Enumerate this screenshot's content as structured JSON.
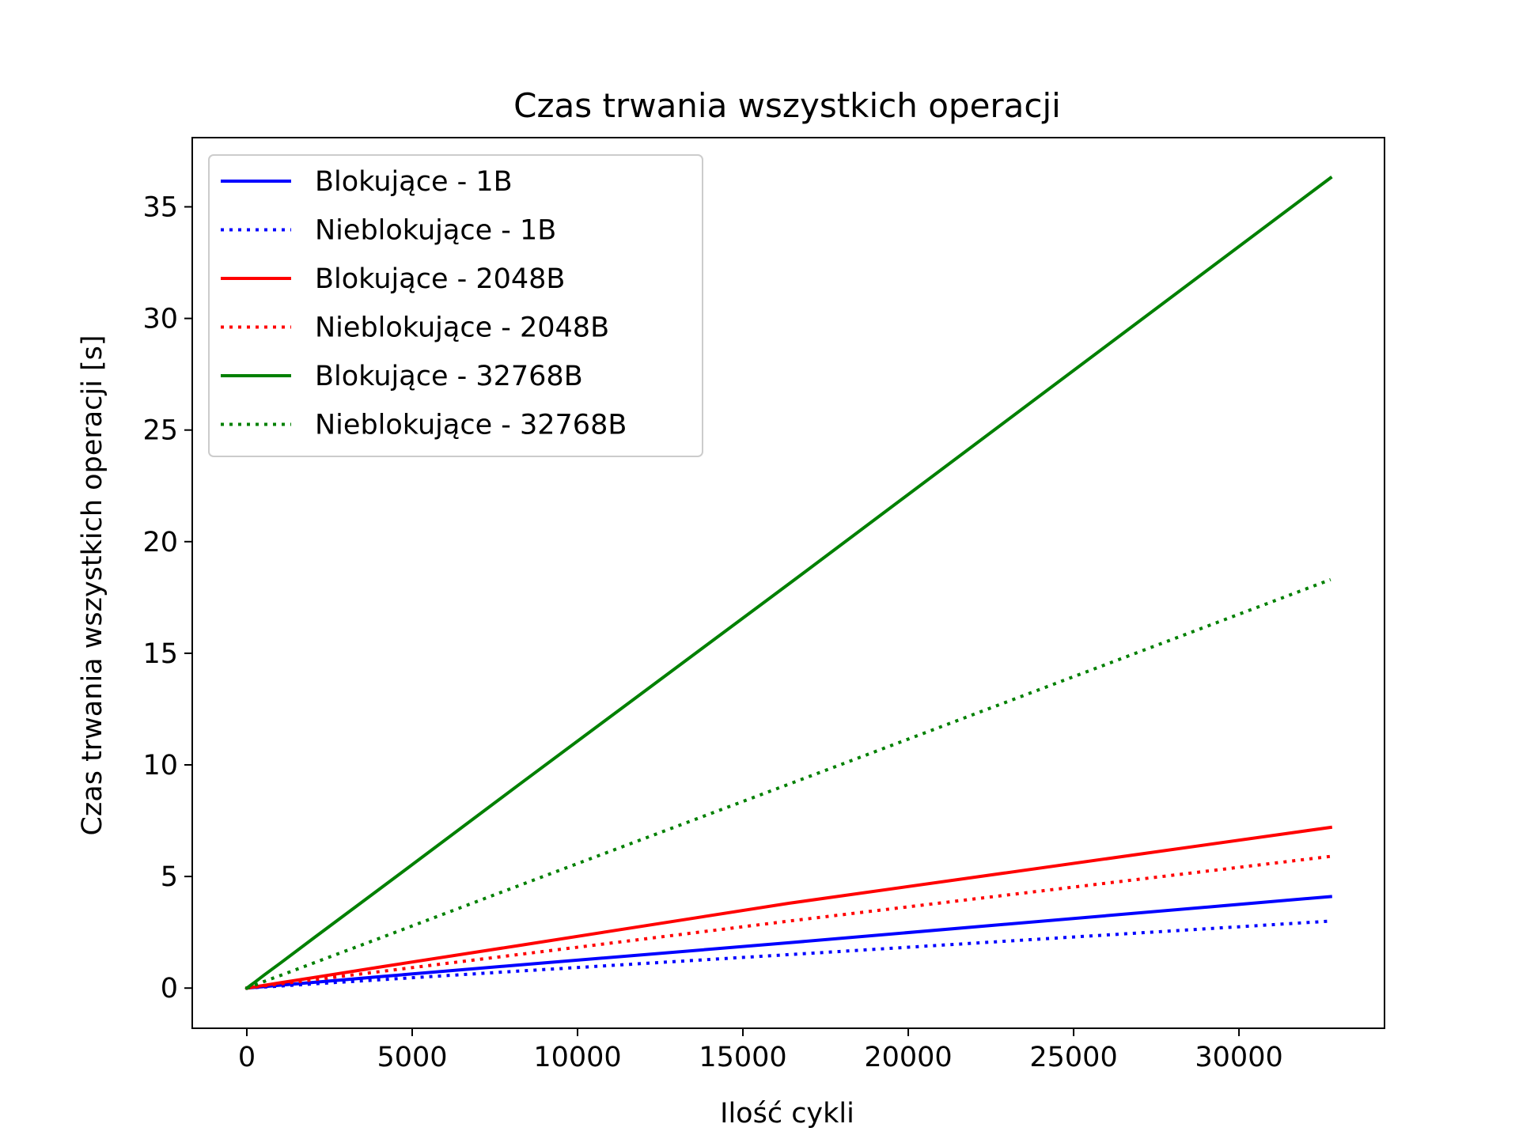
{
  "chart_data": {
    "type": "line",
    "title": "Czas trwania wszystkich operacji",
    "xlabel": "Ilość cykli",
    "ylabel": "Czas trwania wszystkich operacji [s]",
    "xlim": [
      -1650,
      34400
    ],
    "ylim": [
      -1.8,
      38.1
    ],
    "xticks": [
      0,
      5000,
      10000,
      15000,
      20000,
      25000,
      30000
    ],
    "yticks": [
      0,
      5,
      10,
      15,
      20,
      25,
      30,
      35
    ],
    "legend_position": "upper-left",
    "grid": false,
    "x": [
      1,
      2,
      4,
      8,
      16,
      32,
      64,
      128,
      256,
      512,
      1024,
      2048,
      4096,
      8192,
      16384,
      32768
    ],
    "series": [
      {
        "name": "Blokujące - 1B",
        "color": "#0000ff",
        "style": "solid",
        "values": [
          0.0001,
          0.0003,
          0.0005,
          0.001,
          0.002,
          0.004,
          0.008,
          0.016,
          0.032,
          0.064,
          0.13,
          0.26,
          0.52,
          1.03,
          2.03,
          4.1
        ]
      },
      {
        "name": "Nieblokujące - 1B",
        "color": "#0000ff",
        "style": "dotted",
        "values": [
          0.0001,
          0.0002,
          0.0004,
          0.0007,
          0.0015,
          0.003,
          0.006,
          0.012,
          0.024,
          0.047,
          0.094,
          0.19,
          0.38,
          0.76,
          1.5,
          3.0
        ]
      },
      {
        "name": "Blokujące - 2048B",
        "color": "#ff0000",
        "style": "solid",
        "values": [
          0.0002,
          0.0005,
          0.001,
          0.002,
          0.004,
          0.008,
          0.015,
          0.03,
          0.06,
          0.12,
          0.24,
          0.48,
          0.96,
          1.9,
          3.8,
          7.2
        ]
      },
      {
        "name": "Nieblokujące - 2048B",
        "color": "#ff0000",
        "style": "dotted",
        "values": [
          0.0002,
          0.0004,
          0.0008,
          0.0015,
          0.003,
          0.006,
          0.012,
          0.024,
          0.048,
          0.095,
          0.19,
          0.38,
          0.75,
          1.5,
          3.0,
          5.9
        ]
      },
      {
        "name": "Blokujące - 32768B",
        "color": "#008000",
        "style": "solid",
        "values": [
          0.001,
          0.002,
          0.0045,
          0.009,
          0.018,
          0.035,
          0.07,
          0.14,
          0.28,
          0.57,
          1.13,
          2.27,
          4.53,
          9.07,
          18.1,
          36.3
        ]
      },
      {
        "name": "Nieblokujące - 32768B",
        "color": "#008000",
        "style": "dotted",
        "values": [
          0.0006,
          0.0011,
          0.0022,
          0.0045,
          0.009,
          0.018,
          0.036,
          0.071,
          0.14,
          0.29,
          0.57,
          1.14,
          2.28,
          4.57,
          9.13,
          18.3
        ]
      }
    ]
  }
}
